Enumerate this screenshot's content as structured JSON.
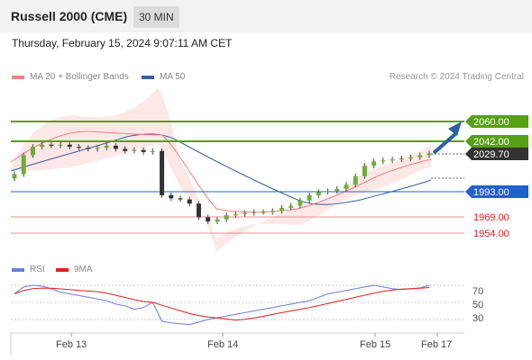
{
  "header": {
    "title": "Russell 2000 (CME)",
    "timeframe": "30 MIN"
  },
  "timestamp": "Thursday, February 15, 2024 9:07:11 AM CET",
  "legend": {
    "ma20_label": "MA 20 + Bollinger Bands",
    "ma20_color": "#f08080",
    "ma50_label": "MA 50",
    "ma50_color": "#3a5fa0"
  },
  "credit": "Research © 2024 Trading Central",
  "levels": [
    {
      "value": "2060.00",
      "style": "resistance",
      "color": "#55a014"
    },
    {
      "value": "2042.00",
      "style": "resistance",
      "color": "#55a014"
    },
    {
      "value": "2029.70",
      "style": "last",
      "color": "#333333"
    },
    {
      "value": "1993.00",
      "style": "pivot",
      "color": "#2060d0"
    },
    {
      "value": "1969.00",
      "style": "support",
      "color": "#e06060"
    },
    {
      "value": "1954.00",
      "style": "support",
      "color": "#e06060"
    }
  ],
  "rsi": {
    "rsi_label": "RSI",
    "rsi_color": "#6a7fd8",
    "ma_label": "9MA",
    "ma_color": "#dd2222",
    "ticks": [
      "70",
      "50",
      "30"
    ]
  },
  "x_labels": [
    "Feb 13",
    "Feb 14",
    "Feb 15",
    "Feb 17"
  ],
  "chart_data": {
    "type": "candlestick",
    "price": [
      2010,
      2028,
      2036,
      2038,
      2037,
      2038,
      2036,
      2035,
      2034,
      2035,
      2037,
      2034,
      2032,
      2033,
      2031,
      2032,
      1990,
      1987,
      1986,
      1982,
      1969,
      1965,
      1967,
      1971,
      1972,
      1973,
      1974,
      1974,
      1975,
      1978,
      1980,
      1985,
      1990,
      1993,
      1994,
      1996,
      2000,
      2008,
      2018,
      2022,
      2023,
      2024,
      2025,
      2026,
      2028,
      2029.7
    ],
    "forecast_target": 2060.0,
    "rsi": [
      60,
      68,
      70,
      69,
      66,
      62,
      60,
      58,
      56,
      54,
      52,
      48,
      46,
      42,
      44,
      50,
      28,
      26,
      25,
      24,
      27,
      30,
      32,
      34,
      36,
      38,
      40,
      42,
      44,
      46,
      48,
      50,
      52,
      56,
      60,
      62,
      64,
      66,
      68,
      70,
      68,
      66,
      65,
      66,
      67,
      70
    ]
  }
}
